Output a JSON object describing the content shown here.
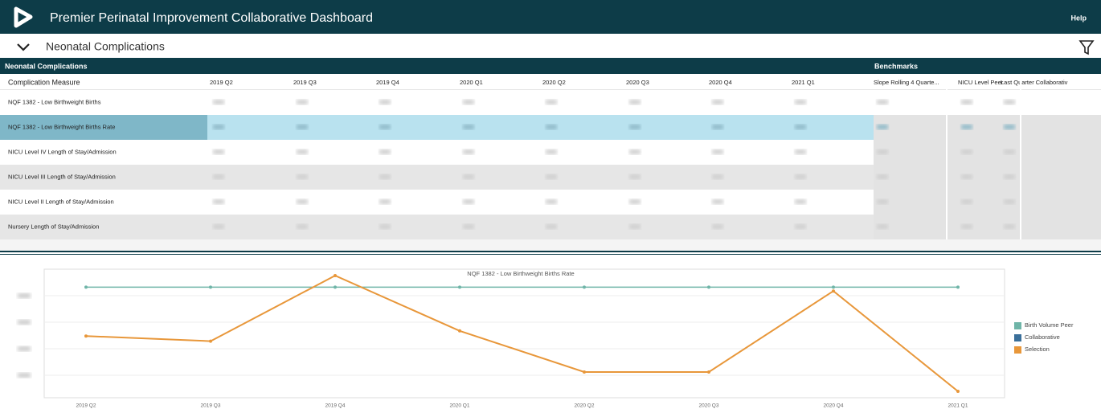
{
  "header": {
    "title": "Premier Perinatal Improvement Collaborative Dashboard",
    "help": "Help"
  },
  "section": {
    "title": "Neonatal Complications"
  },
  "table": {
    "title": "Neonatal Complications",
    "benchmarks_title": "Benchmarks",
    "columns": [
      "Complication Measure",
      "2019 Q2",
      "2019 Q3",
      "2019 Q4",
      "2020 Q1",
      "2020 Q2",
      "2020 Q3",
      "2020 Q4",
      "2021 Q1",
      "Slope Rolling 4 Quarte...",
      "NICU Level Peer",
      "Last Quarter Collaborativ"
    ],
    "rows": [
      "NQF 1382 - Low Birthweight Births",
      "NQF 1382 - Low Birthweight Births Rate",
      "NICU Level IV Length of Stay/Admission",
      "NICU Level III Length of Stay/Admission",
      "NICU Level II Length of Stay/Admission",
      "Nursery Length of Stay/Admission"
    ]
  },
  "chart_data": {
    "type": "line",
    "title": "NQF 1382 - Low Birthweight Births Rate",
    "categories": [
      "2019 Q2",
      "2019 Q3",
      "2019 Q4",
      "2020 Q1",
      "2020 Q2",
      "2020 Q3",
      "2020 Q4",
      "2021 Q1"
    ],
    "ylim": [
      0,
      100
    ],
    "series": [
      {
        "name": "Birth Volume Peer",
        "color": "#6fb5a8",
        "values": [
          86,
          86,
          86,
          86,
          86,
          86,
          86,
          86
        ]
      },
      {
        "name": "Collaborative",
        "color": "#3a6f9a",
        "values": [
          null,
          null,
          null,
          null,
          null,
          null,
          null,
          null
        ]
      },
      {
        "name": "Selection",
        "color": "#e8973a",
        "values": [
          48,
          44,
          95,
          52,
          20,
          20,
          83,
          5
        ]
      }
    ]
  }
}
